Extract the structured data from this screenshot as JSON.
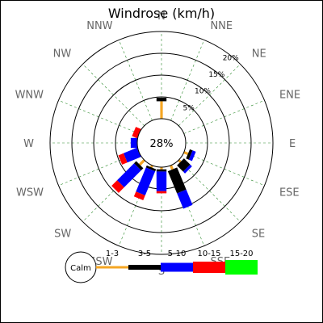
{
  "chart_data": {
    "type": "windrose",
    "title": "Windrose (km/h)",
    "calm_label": "28%",
    "legend_calm": "Calm",
    "rings": [
      {
        "value": 5,
        "label": "5%"
      },
      {
        "value": 10,
        "label": "10%"
      },
      {
        "value": 15,
        "label": "15%"
      },
      {
        "value": 20,
        "label": "20%"
      }
    ],
    "directions": [
      "N",
      "NNE",
      "NE",
      "ENE",
      "E",
      "ESE",
      "SE",
      "SSE",
      "S",
      "SSW",
      "SW",
      "WSW",
      "W",
      "WNW",
      "NW",
      "NNW"
    ],
    "speed_bins": [
      {
        "label": "1-3",
        "color": "#f5a623"
      },
      {
        "label": "3-5",
        "color": "#000000"
      },
      {
        "label": "5-10",
        "color": "#0000ff"
      },
      {
        "label": "10-15",
        "color": "#ff0000"
      },
      {
        "label": "15-20",
        "color": "#00ff00"
      }
    ],
    "series": [
      {
        "direction": "N",
        "values": [
          4,
          0.8,
          0,
          0,
          0
        ]
      },
      {
        "direction": "NNE",
        "values": [
          0,
          0,
          0,
          0,
          0
        ]
      },
      {
        "direction": "NE",
        "values": [
          0,
          0,
          0,
          0,
          0
        ]
      },
      {
        "direction": "ENE",
        "values": [
          0,
          0,
          0,
          0,
          0
        ]
      },
      {
        "direction": "E",
        "values": [
          0,
          0,
          0,
          0,
          0
        ]
      },
      {
        "direction": "ESE",
        "values": [
          1,
          0.7,
          0.8,
          0,
          0
        ]
      },
      {
        "direction": "SE",
        "values": [
          0.6,
          2,
          0.6,
          0,
          0
        ]
      },
      {
        "direction": "SSE",
        "values": [
          1,
          5.5,
          3.8,
          0,
          0
        ]
      },
      {
        "direction": "S",
        "values": [
          0.5,
          0.5,
          4.5,
          0.5,
          0
        ]
      },
      {
        "direction": "SSW",
        "values": [
          0.5,
          0.5,
          6,
          1.2,
          0
        ]
      },
      {
        "direction": "SW",
        "values": [
          1.5,
          0.7,
          5.5,
          1.8,
          0
        ]
      },
      {
        "direction": "WSW",
        "values": [
          0,
          0,
          3.4,
          1.3,
          0
        ]
      },
      {
        "direction": "W",
        "values": [
          0,
          0,
          1.5,
          0,
          0
        ]
      },
      {
        "direction": "WNW",
        "values": [
          0,
          0,
          0,
          1.3,
          0
        ]
      },
      {
        "direction": "NW",
        "values": [
          0,
          0,
          0,
          0,
          0
        ]
      },
      {
        "direction": "NNW",
        "values": [
          0,
          0,
          0,
          0,
          0
        ]
      }
    ],
    "grid": true
  }
}
